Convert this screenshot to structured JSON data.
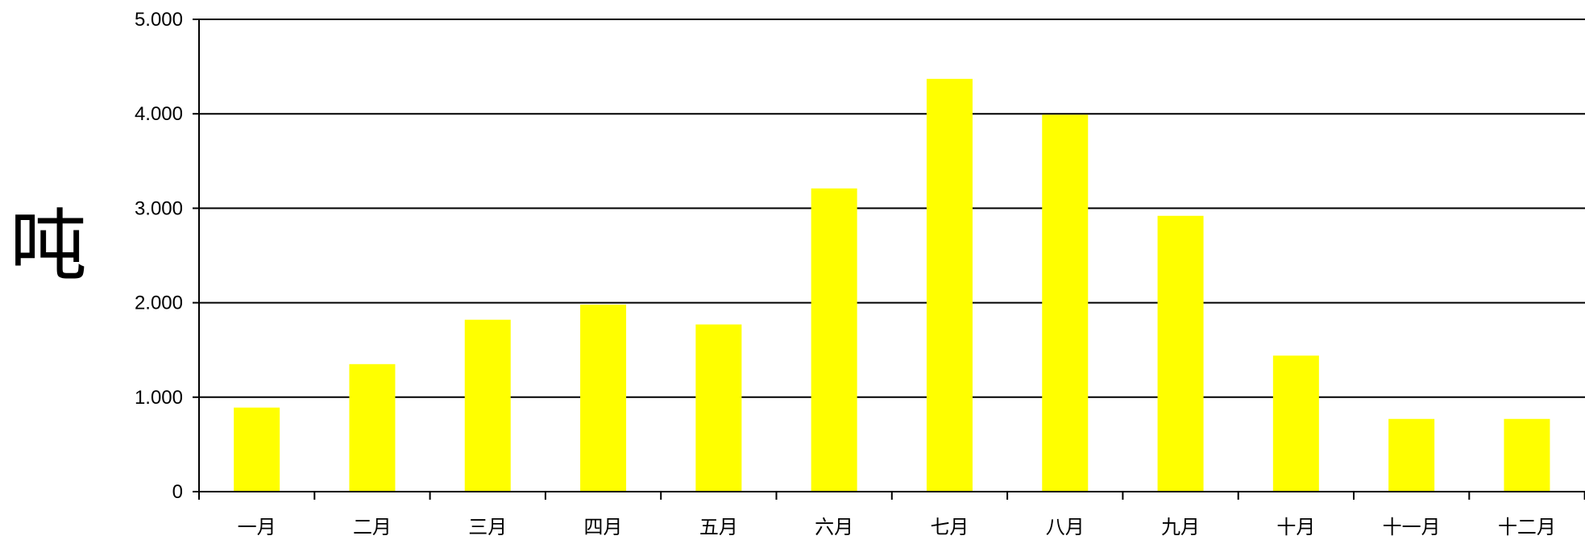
{
  "chart_data": {
    "type": "bar",
    "ylabel": "吨",
    "xlabel": "",
    "categories": [
      "一月",
      "二月",
      "三月",
      "四月",
      "五月",
      "六月",
      "七月",
      "八月",
      "九月",
      "十月",
      "十一月",
      "十二月"
    ],
    "values": [
      890,
      1350,
      1820,
      1980,
      1770,
      3210,
      4370,
      3990,
      2920,
      1440,
      770,
      770
    ],
    "ylim": [
      0,
      5000
    ],
    "yticks": [
      {
        "value": 0,
        "label": "0"
      },
      {
        "value": 1000,
        "label": "1.000"
      },
      {
        "value": 2000,
        "label": "2.000"
      },
      {
        "value": 3000,
        "label": "3.000"
      },
      {
        "value": 4000,
        "label": "4.000"
      },
      {
        "value": 5000,
        "label": "5.000"
      }
    ],
    "grid": true,
    "bar_color": "#ffff00",
    "legend": "none"
  }
}
